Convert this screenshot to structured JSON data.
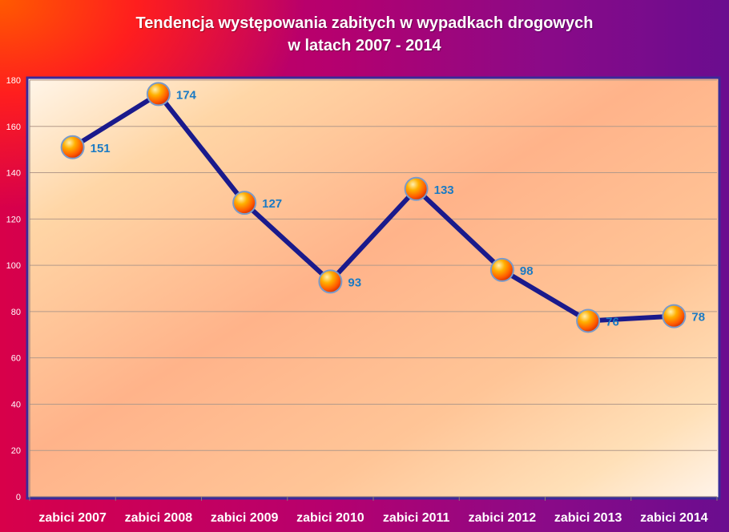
{
  "chart_data": {
    "type": "line",
    "title_lines": [
      "Tendencja występowania zabitych w wypadkach drogowych",
      "w latach 2007 - 2014"
    ],
    "categories": [
      "zabici 2007",
      "zabici 2008",
      "zabici 2009",
      "zabici 2010",
      "zabici 2011",
      "zabici 2012",
      "zabici 2013",
      "zabici 2014"
    ],
    "values": [
      151,
      174,
      127,
      93,
      133,
      98,
      76,
      78
    ],
    "y_ticks": [
      0,
      20,
      40,
      60,
      80,
      100,
      120,
      140,
      160,
      180
    ],
    "ylim": [
      0,
      180
    ],
    "grid": true,
    "legend": "none",
    "colors": {
      "line": "#1a1a8c",
      "marker": "#ff7a00",
      "data_label": "#1a7ac4",
      "tick_label": "#ffffff"
    }
  }
}
